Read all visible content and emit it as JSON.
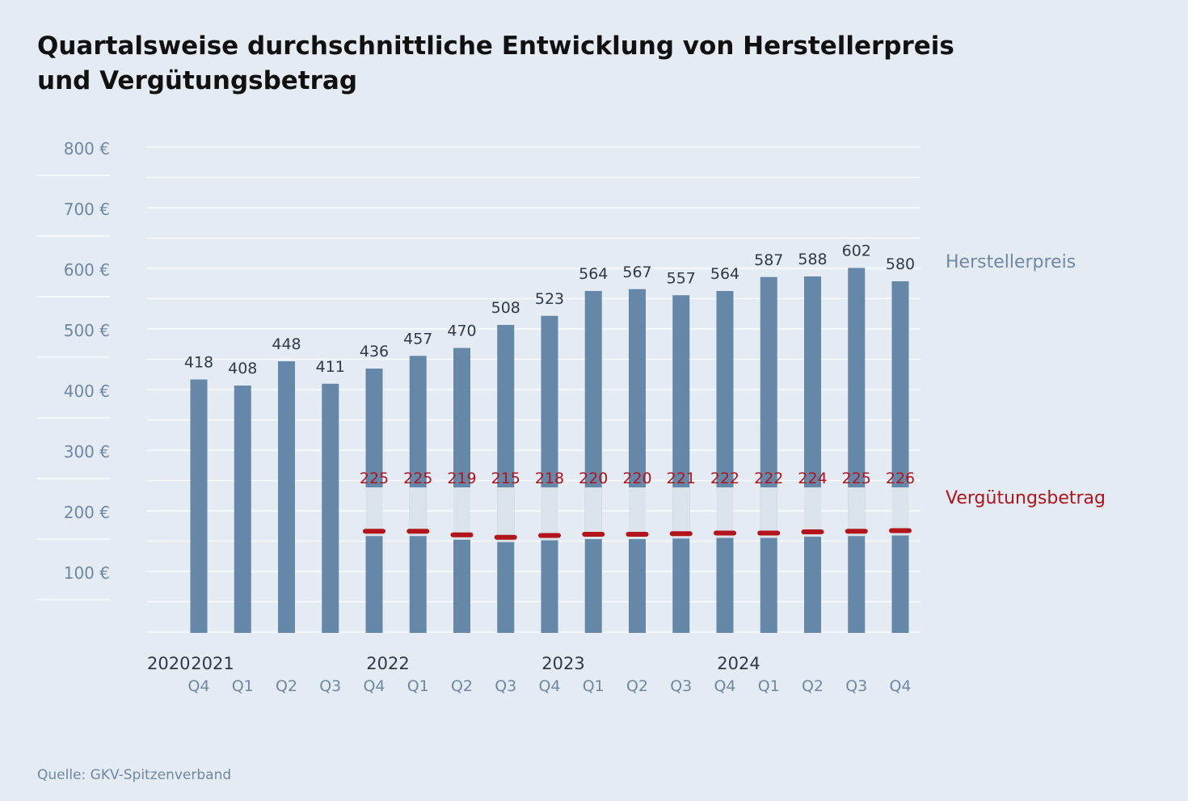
{
  "chart_data": {
    "type": "bar",
    "title": "Quartalsweise durchschnittliche Entwicklung von Herstellerpreis und Vergütungsbetrag",
    "source": "Quelle: GKV-Spitzenverband",
    "y_ticks": [
      "800 €",
      "700 €",
      "600 €",
      "500 €",
      "400 €",
      "300 €",
      "200 €",
      "100 €"
    ],
    "y_tick_values": [
      800,
      700,
      600,
      500,
      400,
      300,
      200,
      100
    ],
    "ylim": [
      0,
      800
    ],
    "grid": true,
    "categories": [
      "Q4",
      "Q1",
      "Q2",
      "Q3",
      "Q4",
      "Q1",
      "Q2",
      "Q3",
      "Q4",
      "Q1",
      "Q2",
      "Q3",
      "Q4",
      "Q1",
      "Q2",
      "Q3",
      "Q4"
    ],
    "years": [
      {
        "label": "2020",
        "index": 0
      },
      {
        "label": "2021",
        "index": 1
      },
      {
        "label": "2022",
        "index": 5
      },
      {
        "label": "2023",
        "index": 9
      },
      {
        "label": "2024",
        "index": 13
      }
    ],
    "series": [
      {
        "name": "Herstellerpreis",
        "kind": "bar",
        "color": "#6587a8",
        "values": [
          418,
          408,
          448,
          411,
          436,
          457,
          470,
          508,
          523,
          564,
          567,
          557,
          564,
          587,
          588,
          602,
          580
        ]
      },
      {
        "name": "Vergütungsbetrag",
        "kind": "marker",
        "color": "#b3141c",
        "values": [
          null,
          null,
          null,
          null,
          225,
          225,
          219,
          215,
          218,
          220,
          220,
          221,
          222,
          222,
          224,
          225,
          226
        ]
      }
    ]
  }
}
